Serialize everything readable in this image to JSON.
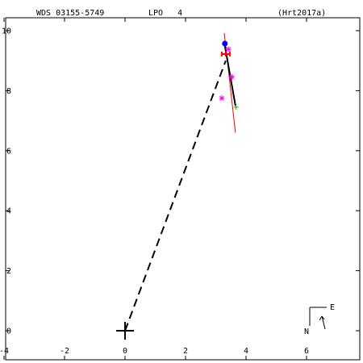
{
  "header": {
    "left": "WDS 03155-5749",
    "middle": "LPO   4",
    "right": "(Hrt2017a)"
  },
  "chart_data": {
    "type": "scatter",
    "title": "",
    "xlabel": "",
    "ylabel": "",
    "xlim": [
      -4,
      7.8
    ],
    "ylim": [
      -0.6,
      10.4
    ],
    "x_ticks": [
      -4,
      -2,
      0,
      2,
      4,
      6
    ],
    "x_tick_labels": [
      "-4",
      "-2",
      "0",
      "2",
      "4",
      "6"
    ],
    "y_ticks": [
      0,
      2,
      4,
      6,
      8,
      10
    ],
    "y_tick_labels": [
      "0",
      "2",
      "4",
      "6",
      "8",
      "10"
    ],
    "grid": false,
    "primary": {
      "x": 0,
      "y": 0
    },
    "dashed_line": {
      "from": [
        0,
        0
      ],
      "to": [
        3.33,
        9.0
      ]
    },
    "fit_line": {
      "from": [
        3.28,
        9.92
      ],
      "to": [
        3.65,
        6.6
      ],
      "color": "#ff0000"
    },
    "orbit_segment": {
      "from": [
        3.3,
        9.5
      ],
      "to": [
        3.65,
        7.5
      ],
      "color": "#000000"
    },
    "series": [
      {
        "marker": "filled-circle",
        "color": "#0000ff",
        "points": [
          [
            3.3,
            9.57
          ]
        ]
      },
      {
        "marker": "star",
        "color": "#ff00ff",
        "points": [
          [
            3.2,
            7.75
          ],
          [
            3.53,
            8.45
          ],
          [
            3.42,
            9.38
          ]
        ]
      },
      {
        "marker": "errorbar-cross",
        "color": "#ff0000",
        "points": [
          [
            3.33,
            9.22
          ]
        ]
      },
      {
        "marker": "plus",
        "color": "#00aa00",
        "points": [
          [
            3.67,
            7.45
          ]
        ]
      }
    ],
    "compass": {
      "north": "N",
      "east": "E"
    }
  }
}
